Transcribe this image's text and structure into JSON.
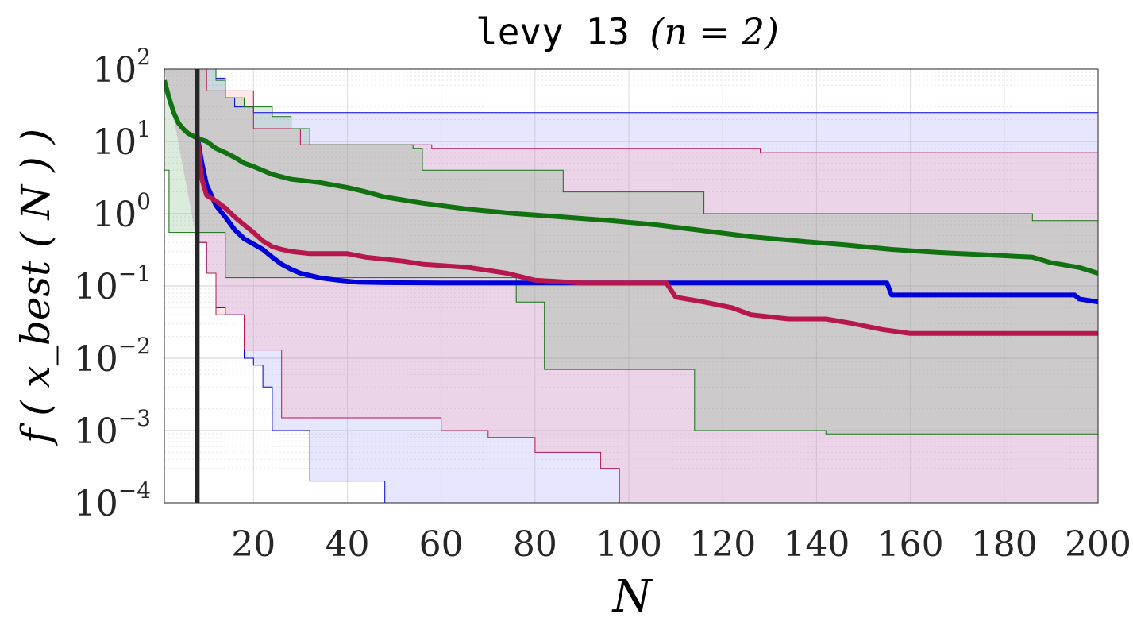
{
  "chart_data": {
    "type": "line",
    "title": {
      "function_name": "levy 13",
      "dimension": "(n = 2)"
    },
    "xlabel": "N",
    "ylabel": "f ( x_best ( N ) )",
    "xlim": [
      1,
      200
    ],
    "ylim": [
      0.0001,
      100
    ],
    "yscale": "log",
    "grid": true,
    "xticks": [
      20,
      40,
      60,
      80,
      100,
      120,
      140,
      160,
      180,
      200
    ],
    "xtick_labels": [
      "20",
      "40",
      "60",
      "80",
      "100",
      "120",
      "140",
      "160",
      "180",
      "200"
    ],
    "yticks": [
      {
        "base": "10",
        "exp": "-4",
        "value": 0.0001
      },
      {
        "base": "10",
        "exp": "-3",
        "value": 0.001
      },
      {
        "base": "10",
        "exp": "-2",
        "value": 0.01
      },
      {
        "base": "10",
        "exp": "-1",
        "value": 0.1
      },
      {
        "base": "10",
        "exp": "0",
        "value": 1
      },
      {
        "base": "10",
        "exp": "1",
        "value": 10
      },
      {
        "base": "10",
        "exp": "2",
        "value": 100
      }
    ],
    "vertical_marker_x": 8,
    "series": [
      {
        "color": "#0000d8",
        "band_color": "#8f8fff",
        "median": [
          [
            8,
            12
          ],
          [
            9,
            5
          ],
          [
            10,
            2.5
          ],
          [
            11,
            1.8
          ],
          [
            12,
            1.3
          ],
          [
            14,
            0.9
          ],
          [
            16,
            0.6
          ],
          [
            18,
            0.45
          ],
          [
            20,
            0.38
          ],
          [
            22,
            0.32
          ],
          [
            24,
            0.25
          ],
          [
            26,
            0.2
          ],
          [
            28,
            0.17
          ],
          [
            30,
            0.15
          ],
          [
            34,
            0.13
          ],
          [
            38,
            0.12
          ],
          [
            42,
            0.113
          ],
          [
            48,
            0.111
          ],
          [
            60,
            0.11
          ],
          [
            100,
            0.11
          ],
          [
            155,
            0.11
          ],
          [
            156,
            0.075
          ],
          [
            195,
            0.075
          ],
          [
            196,
            0.066
          ],
          [
            200,
            0.06
          ]
        ],
        "upper": [
          [
            1,
            100
          ],
          [
            10,
            100
          ],
          [
            12,
            75
          ],
          [
            14,
            40
          ],
          [
            16,
            30
          ],
          [
            20,
            25
          ],
          [
            200,
            25
          ]
        ],
        "lower": [
          [
            8,
            0.4
          ],
          [
            10,
            0.15
          ],
          [
            12,
            0.05
          ],
          [
            14,
            0.04
          ],
          [
            16,
            0.04
          ],
          [
            18,
            0.01
          ],
          [
            20,
            0.008
          ],
          [
            22,
            0.004
          ],
          [
            24,
            0.001
          ],
          [
            30,
            0.001
          ],
          [
            32,
            0.0002
          ],
          [
            44,
            0.0002
          ],
          [
            48,
            5e-05
          ],
          [
            200,
            5e-05
          ]
        ]
      },
      {
        "color": "#b5174e",
        "band_color": "#ff9494",
        "median": [
          [
            8,
            12
          ],
          [
            9,
            3
          ],
          [
            10,
            1.8
          ],
          [
            12,
            1.5
          ],
          [
            14,
            1.2
          ],
          [
            16,
            0.9
          ],
          [
            18,
            0.7
          ],
          [
            20,
            0.55
          ],
          [
            22,
            0.42
          ],
          [
            24,
            0.35
          ],
          [
            26,
            0.32
          ],
          [
            28,
            0.3
          ],
          [
            32,
            0.28
          ],
          [
            40,
            0.28
          ],
          [
            44,
            0.25
          ],
          [
            52,
            0.22
          ],
          [
            56,
            0.2
          ],
          [
            66,
            0.18
          ],
          [
            74,
            0.15
          ],
          [
            80,
            0.12
          ],
          [
            90,
            0.11
          ],
          [
            108,
            0.11
          ],
          [
            110,
            0.07
          ],
          [
            116,
            0.06
          ],
          [
            122,
            0.05
          ],
          [
            126,
            0.04
          ],
          [
            134,
            0.035
          ],
          [
            142,
            0.035
          ],
          [
            148,
            0.03
          ],
          [
            154,
            0.025
          ],
          [
            160,
            0.022
          ],
          [
            200,
            0.022
          ]
        ],
        "upper": [
          [
            1,
            100
          ],
          [
            8,
            100
          ],
          [
            10,
            50
          ],
          [
            18,
            50
          ],
          [
            20,
            15
          ],
          [
            26,
            15
          ],
          [
            30,
            9
          ],
          [
            58,
            8
          ],
          [
            128,
            7
          ],
          [
            200,
            6.5
          ]
        ],
        "lower": [
          [
            8,
            0.4
          ],
          [
            10,
            0.15
          ],
          [
            12,
            0.04
          ],
          [
            14,
            0.04
          ],
          [
            16,
            0.04
          ],
          [
            18,
            0.013
          ],
          [
            24,
            0.013
          ],
          [
            26,
            0.0015
          ],
          [
            54,
            0.0015
          ],
          [
            60,
            0.001
          ],
          [
            70,
            0.0008
          ],
          [
            80,
            0.0005
          ],
          [
            94,
            0.0003
          ],
          [
            98,
            5e-05
          ],
          [
            200,
            5e-05
          ]
        ]
      },
      {
        "color": "#127212",
        "band_color": "#5ea85e",
        "median": [
          [
            1,
            70
          ],
          [
            2,
            40
          ],
          [
            3,
            25
          ],
          [
            4,
            18
          ],
          [
            5,
            15
          ],
          [
            6,
            13
          ],
          [
            7,
            12
          ],
          [
            8,
            11
          ],
          [
            10,
            10
          ],
          [
            12,
            8
          ],
          [
            14,
            7
          ],
          [
            16,
            6
          ],
          [
            18,
            5
          ],
          [
            20,
            4.5
          ],
          [
            24,
            3.5
          ],
          [
            28,
            3
          ],
          [
            34,
            2.7
          ],
          [
            40,
            2.3
          ],
          [
            44,
            2
          ],
          [
            48,
            1.7
          ],
          [
            56,
            1.4
          ],
          [
            66,
            1.15
          ],
          [
            76,
            1
          ],
          [
            86,
            0.9
          ],
          [
            96,
            0.8
          ],
          [
            106,
            0.7
          ],
          [
            116,
            0.58
          ],
          [
            126,
            0.48
          ],
          [
            136,
            0.42
          ],
          [
            146,
            0.37
          ],
          [
            156,
            0.32
          ],
          [
            166,
            0.29
          ],
          [
            176,
            0.27
          ],
          [
            186,
            0.25
          ],
          [
            190,
            0.21
          ],
          [
            196,
            0.18
          ],
          [
            200,
            0.15
          ]
        ],
        "upper": [
          [
            1,
            100
          ],
          [
            8,
            100
          ],
          [
            12,
            70
          ],
          [
            14,
            40
          ],
          [
            18,
            30
          ],
          [
            24,
            22
          ],
          [
            28,
            15
          ],
          [
            32,
            9
          ],
          [
            54,
            8
          ],
          [
            56,
            4
          ],
          [
            84,
            4
          ],
          [
            86,
            2
          ],
          [
            112,
            2
          ],
          [
            116,
            1
          ],
          [
            182,
            1
          ],
          [
            186,
            0.8
          ],
          [
            200,
            0.7
          ]
        ],
        "lower": [
          [
            1,
            4
          ],
          [
            2,
            0.55
          ],
          [
            10,
            0.55
          ],
          [
            12,
            0.55
          ],
          [
            14,
            0.13
          ],
          [
            74,
            0.13
          ],
          [
            76,
            0.06
          ],
          [
            80,
            0.06
          ],
          [
            82,
            0.007
          ],
          [
            112,
            0.007
          ],
          [
            114,
            0.001
          ],
          [
            140,
            0.001
          ],
          [
            142,
            0.0009
          ],
          [
            200,
            0.0009
          ]
        ]
      }
    ]
  }
}
